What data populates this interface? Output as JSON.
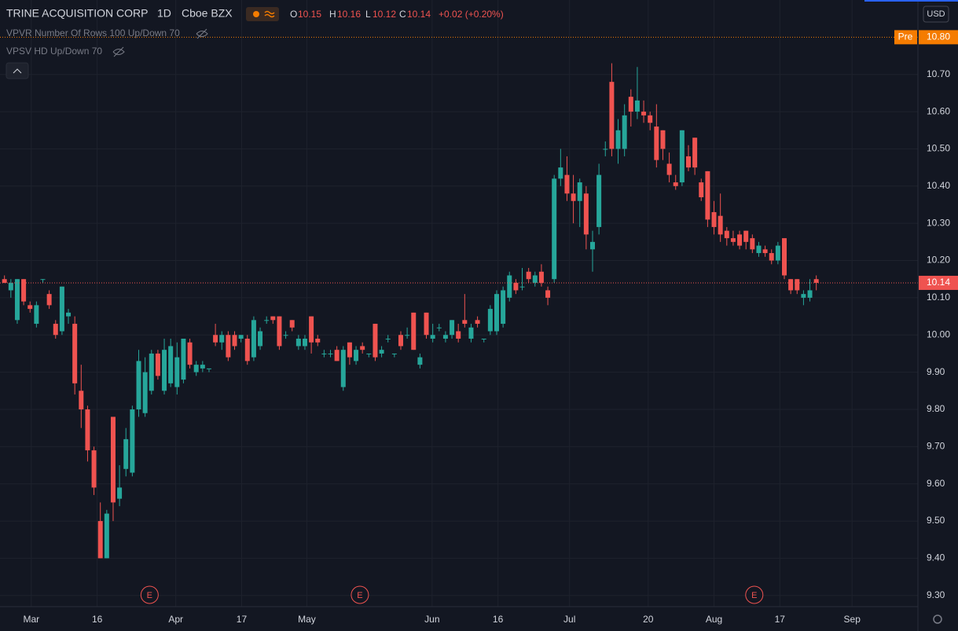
{
  "chart_data": {
    "type": "candlestick",
    "title": "TRINE ACQUISITION CORP",
    "interval": "1D",
    "exchange": "Cboe BZX",
    "legend": {
      "open_label": "O",
      "open": "10.15",
      "high_label": "H",
      "high": "10.16",
      "low_label": "L",
      "low": "10.12",
      "close_label": "C",
      "close": "10.14",
      "change": "+0.02 (+0.20%)"
    },
    "indicators": [
      "VPVR Number Of Rows 100 Up/Down 70",
      "VPSV HD Up/Down 70"
    ],
    "currency": "USD",
    "up_color": "#26a69a",
    "down_color": "#ef5350",
    "grid": true,
    "ohlc": [
      [
        10.15,
        10.16,
        10.14,
        10.14
      ],
      [
        10.12,
        10.15,
        10.1,
        10.14
      ],
      [
        10.04,
        10.15,
        10.03,
        10.15
      ],
      [
        10.15,
        10.15,
        10.08,
        10.09
      ],
      [
        10.08,
        10.09,
        10.06,
        10.07
      ],
      [
        10.03,
        10.09,
        10.02,
        10.08
      ],
      [
        10.15,
        10.15,
        10.14,
        10.15
      ],
      [
        10.11,
        10.12,
        10.07,
        10.08
      ],
      [
        10.03,
        10.04,
        9.99,
        10.0
      ],
      [
        10.01,
        10.13,
        10.0,
        10.13
      ],
      [
        10.05,
        10.07,
        10.03,
        10.06
      ],
      [
        10.03,
        10.05,
        9.84,
        9.87
      ],
      [
        9.85,
        9.92,
        9.75,
        9.8
      ],
      [
        9.8,
        9.81,
        9.66,
        9.69
      ],
      [
        9.69,
        9.7,
        9.57,
        9.59
      ],
      [
        9.5,
        9.55,
        9.4,
        9.4
      ],
      [
        9.4,
        9.53,
        9.4,
        9.52
      ],
      [
        9.78,
        9.78,
        9.5,
        9.55
      ],
      [
        9.56,
        9.65,
        9.54,
        9.59
      ],
      [
        9.64,
        9.75,
        9.62,
        9.72
      ],
      [
        9.63,
        9.81,
        9.62,
        9.8
      ],
      [
        9.8,
        9.96,
        9.78,
        9.93
      ],
      [
        9.79,
        9.94,
        9.78,
        9.9
      ],
      [
        9.85,
        9.96,
        9.84,
        9.95
      ],
      [
        9.95,
        9.96,
        9.88,
        9.89
      ],
      [
        9.85,
        9.99,
        9.84,
        9.96
      ],
      [
        9.87,
        9.99,
        9.86,
        9.97
      ],
      [
        9.86,
        9.98,
        9.84,
        9.94
      ],
      [
        9.88,
        9.99,
        9.87,
        9.99
      ],
      [
        9.98,
        9.99,
        9.91,
        9.92
      ],
      [
        9.9,
        9.93,
        9.89,
        9.92
      ],
      [
        9.91,
        9.93,
        9.9,
        9.92
      ],
      [
        9.91,
        9.91,
        9.9,
        9.91
      ],
      [
        10.0,
        10.03,
        9.97,
        9.98
      ],
      [
        9.98,
        10.01,
        9.96,
        10.0
      ],
      [
        10.0,
        10.01,
        9.93,
        9.94
      ],
      [
        10.0,
        10.01,
        9.96,
        9.97
      ],
      [
        9.99,
        10.0,
        9.98,
        10.0
      ],
      [
        9.99,
        10.0,
        9.92,
        9.93
      ],
      [
        9.94,
        10.05,
        9.93,
        10.04
      ],
      [
        9.97,
        10.02,
        9.96,
        10.01
      ],
      [
        10.04,
        10.05,
        10.03,
        10.04
      ],
      [
        10.05,
        10.05,
        10.03,
        10.04
      ],
      [
        10.05,
        10.05,
        9.96,
        9.97
      ],
      [
        10.0,
        10.01,
        9.99,
        10.0
      ],
      [
        10.04,
        10.04,
        10.01,
        10.02
      ],
      [
        9.97,
        10.0,
        9.96,
        9.99
      ],
      [
        9.97,
        10.0,
        9.96,
        9.99
      ],
      [
        10.05,
        10.05,
        9.95,
        9.98
      ],
      [
        9.99,
        10.0,
        9.97,
        9.98
      ],
      [
        9.95,
        9.96,
        9.94,
        9.95
      ],
      [
        9.95,
        9.96,
        9.94,
        9.95
      ],
      [
        9.96,
        9.97,
        9.93,
        9.93
      ],
      [
        9.86,
        9.97,
        9.85,
        9.96
      ],
      [
        9.98,
        9.98,
        9.92,
        9.94
      ],
      [
        9.93,
        9.97,
        9.92,
        9.96
      ],
      [
        9.97,
        9.98,
        9.95,
        9.96
      ],
      [
        9.95,
        9.95,
        9.94,
        9.95
      ],
      [
        10.03,
        10.03,
        9.93,
        9.94
      ],
      [
        9.95,
        9.97,
        9.94,
        9.96
      ],
      [
        9.99,
        10.0,
        9.98,
        9.99
      ],
      [
        9.95,
        9.95,
        9.94,
        9.95
      ],
      [
        10.0,
        10.01,
        9.96,
        9.97
      ],
      [
        10.0,
        10.02,
        9.99,
        10.0
      ],
      [
        10.06,
        10.06,
        9.96,
        9.96
      ],
      [
        9.92,
        9.95,
        9.91,
        9.94
      ],
      [
        10.06,
        10.06,
        9.99,
        10.0
      ],
      [
        9.99,
        10.03,
        9.98,
        10.0
      ],
      [
        10.02,
        10.03,
        10.01,
        10.02
      ],
      [
        9.99,
        10.01,
        9.98,
        10.0
      ],
      [
        10.0,
        10.04,
        9.99,
        10.04
      ],
      [
        10.01,
        10.03,
        9.98,
        9.99
      ],
      [
        10.04,
        10.11,
        10.02,
        10.03
      ],
      [
        9.99,
        10.03,
        9.98,
        10.02
      ],
      [
        10.04,
        10.05,
        10.02,
        10.03
      ],
      [
        9.99,
        9.99,
        9.98,
        9.99
      ],
      [
        10.01,
        10.08,
        10.0,
        10.07
      ],
      [
        10.01,
        10.12,
        10.0,
        10.11
      ],
      [
        10.03,
        10.13,
        10.02,
        10.12
      ],
      [
        10.1,
        10.17,
        10.09,
        10.16
      ],
      [
        10.14,
        10.15,
        10.11,
        10.12
      ],
      [
        10.13,
        10.18,
        10.12,
        10.13
      ],
      [
        10.17,
        10.18,
        10.14,
        10.15
      ],
      [
        10.14,
        10.17,
        10.13,
        10.16
      ],
      [
        10.17,
        10.19,
        10.13,
        10.14
      ],
      [
        10.12,
        10.13,
        10.08,
        10.1
      ],
      [
        10.15,
        10.43,
        10.14,
        10.42
      ],
      [
        10.42,
        10.5,
        10.4,
        10.45
      ],
      [
        10.43,
        10.48,
        10.36,
        10.38
      ],
      [
        10.38,
        10.43,
        10.3,
        10.36
      ],
      [
        10.36,
        10.42,
        10.29,
        10.41
      ],
      [
        10.38,
        10.4,
        10.23,
        10.27
      ],
      [
        10.23,
        10.28,
        10.17,
        10.25
      ],
      [
        10.29,
        10.46,
        10.27,
        10.43
      ],
      [
        10.5,
        10.52,
        10.48,
        10.5
      ],
      [
        10.68,
        10.73,
        10.48,
        10.5
      ],
      [
        10.5,
        10.58,
        10.46,
        10.55
      ],
      [
        10.5,
        10.62,
        10.48,
        10.59
      ],
      [
        10.64,
        10.66,
        10.56,
        10.6
      ],
      [
        10.6,
        10.72,
        10.58,
        10.63
      ],
      [
        10.6,
        10.63,
        10.57,
        10.59
      ],
      [
        10.59,
        10.6,
        10.55,
        10.57
      ],
      [
        10.56,
        10.62,
        10.45,
        10.47
      ],
      [
        10.55,
        10.55,
        10.47,
        10.5
      ],
      [
        10.46,
        10.49,
        10.41,
        10.43
      ],
      [
        10.41,
        10.43,
        10.39,
        10.4
      ],
      [
        10.41,
        10.55,
        10.4,
        10.55
      ],
      [
        10.48,
        10.51,
        10.44,
        10.45
      ],
      [
        10.53,
        10.53,
        10.43,
        10.45
      ],
      [
        10.41,
        10.42,
        10.36,
        10.37
      ],
      [
        10.44,
        10.44,
        10.29,
        10.31
      ],
      [
        10.33,
        10.36,
        10.27,
        10.29
      ],
      [
        10.32,
        10.38,
        10.25,
        10.27
      ],
      [
        10.28,
        10.29,
        10.24,
        10.26
      ],
      [
        10.26,
        10.28,
        10.24,
        10.25
      ],
      [
        10.27,
        10.28,
        10.23,
        10.24
      ],
      [
        10.28,
        10.28,
        10.23,
        10.25
      ],
      [
        10.26,
        10.27,
        10.22,
        10.23
      ],
      [
        10.22,
        10.25,
        10.21,
        10.24
      ],
      [
        10.23,
        10.24,
        10.21,
        10.22
      ],
      [
        10.22,
        10.23,
        10.19,
        10.2
      ],
      [
        10.2,
        10.25,
        10.19,
        10.24
      ],
      [
        10.26,
        10.26,
        10.15,
        10.16
      ],
      [
        10.15,
        10.15,
        10.11,
        10.12
      ],
      [
        10.15,
        10.15,
        10.11,
        10.12
      ],
      [
        10.1,
        10.12,
        10.08,
        10.11
      ],
      [
        10.1,
        10.15,
        10.09,
        10.12
      ],
      [
        10.15,
        10.16,
        10.12,
        10.14
      ]
    ],
    "xlim": [
      -0.7,
      142.9
    ],
    "xticks": [
      {
        "value": 4.2,
        "label": "Mar"
      },
      {
        "value": 14.5,
        "label": "16"
      },
      {
        "value": 26.8,
        "label": "Apr"
      },
      {
        "value": 37.1,
        "label": "17"
      },
      {
        "value": 47.3,
        "label": "May"
      },
      {
        "value": 66.9,
        "label": "Jun"
      },
      {
        "value": 77.2,
        "label": "16"
      },
      {
        "value": 88.4,
        "label": "Jul"
      },
      {
        "value": 100.7,
        "label": "20"
      },
      {
        "value": 111.0,
        "label": "Aug"
      },
      {
        "value": 121.3,
        "label": "17"
      },
      {
        "value": 132.6,
        "label": "Sep"
      }
    ],
    "ylim": [
      9.27,
      10.9
    ],
    "yticks": [
      {
        "value": 9.3,
        "label": "9.30"
      },
      {
        "value": 9.4,
        "label": "9.40"
      },
      {
        "value": 9.5,
        "label": "9.50"
      },
      {
        "value": 9.6,
        "label": "9.60"
      },
      {
        "value": 9.7,
        "label": "9.70"
      },
      {
        "value": 9.8,
        "label": "9.80"
      },
      {
        "value": 9.9,
        "label": "9.90"
      },
      {
        "value": 10,
        "label": "10.00"
      },
      {
        "value": 10.1,
        "label": "10.10"
      },
      {
        "value": 10.2,
        "label": "10.20"
      },
      {
        "value": 10.3,
        "label": "10.30"
      },
      {
        "value": 10.4,
        "label": "10.40"
      },
      {
        "value": 10.5,
        "label": "10.50"
      },
      {
        "value": 10.6,
        "label": "10.60"
      },
      {
        "value": 10.7,
        "label": "10.70"
      }
    ],
    "pre_market": {
      "label": "Pre",
      "value": 10.8,
      "value_label": "10.80",
      "color": "#f57c00"
    },
    "last_price": {
      "value": 10.14,
      "value_label": "10.14",
      "color": "#ef5350"
    },
    "events": [
      {
        "label": "E",
        "x": 22.7
      },
      {
        "label": "E",
        "x": 55.6
      },
      {
        "label": "E",
        "x": 117.3
      }
    ]
  }
}
